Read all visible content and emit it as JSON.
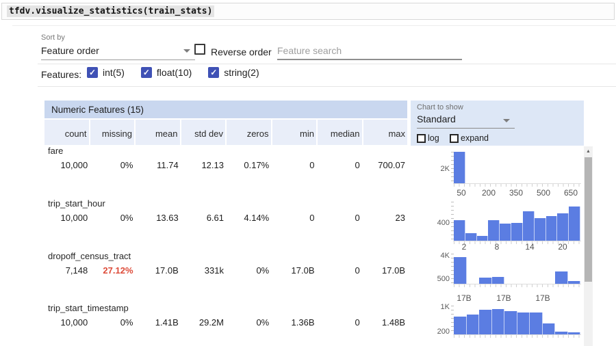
{
  "code": "tfdv.visualize_statistics(train_stats)",
  "controls": {
    "sort_by_label": "Sort by",
    "sort_by_value": "Feature order",
    "reverse_order_label": "Reverse order",
    "search_placeholder": "Feature search",
    "features_label": "Features:",
    "feature_types": [
      {
        "label": "int(5)",
        "checked": true
      },
      {
        "label": "float(10)",
        "checked": true
      },
      {
        "label": "string(2)",
        "checked": true
      }
    ]
  },
  "chart_panel": {
    "label": "Chart to show",
    "value": "Standard",
    "log_label": "log",
    "expand_label": "expand"
  },
  "table": {
    "title": "Numeric Features (15)",
    "columns": [
      "count",
      "missing",
      "mean",
      "std dev",
      "zeros",
      "min",
      "median",
      "max"
    ],
    "rows": [
      {
        "name": "fare",
        "values": [
          "10,000",
          "0%",
          "11.74",
          "12.13",
          "0.17%",
          "0",
          "0",
          "700.07"
        ],
        "missing_alert": false
      },
      {
        "name": "trip_start_hour",
        "values": [
          "10,000",
          "0%",
          "13.63",
          "6.61",
          "4.14%",
          "0",
          "0",
          "23"
        ],
        "missing_alert": false
      },
      {
        "name": "dropoff_census_tract",
        "values": [
          "7,148",
          "27.12%",
          "17.0B",
          "331k",
          "0%",
          "17.0B",
          "0",
          "17.0B"
        ],
        "missing_alert": true
      },
      {
        "name": "trip_start_timestamp",
        "values": [
          "10,000",
          "0%",
          "1.41B",
          "29.2M",
          "0%",
          "1.36B",
          "0",
          "1.48B"
        ],
        "missing_alert": false
      }
    ]
  },
  "charts": [
    {
      "feature": "fare",
      "type": "histogram",
      "y_labels": [
        "2K"
      ],
      "x_labels": [
        "50",
        "200",
        "350",
        "500",
        "650"
      ],
      "bars": [
        1,
        0,
        0,
        0,
        0,
        0,
        0,
        0,
        0,
        0,
        0
      ]
    },
    {
      "feature": "trip_start_hour",
      "type": "histogram",
      "y_labels": [
        "400"
      ],
      "x_labels": [
        "2",
        "8",
        "14",
        "20"
      ],
      "bars": [
        0.52,
        0.2,
        0.13,
        0.52,
        0.43,
        0.46,
        0.76,
        0.58,
        0.63,
        0.7,
        0.88
      ]
    },
    {
      "feature": "dropoff_census_tract",
      "type": "histogram",
      "y_labels": [
        "4K",
        "500"
      ],
      "x_labels": [
        "17B",
        "17B",
        "17B"
      ],
      "bars": [
        0.89,
        0,
        0.2,
        0.23,
        0,
        0,
        0,
        0,
        0.41,
        0.09
      ]
    },
    {
      "feature": "trip_start_timestamp",
      "type": "histogram",
      "y_labels": [
        "1K",
        "200"
      ],
      "x_labels": [],
      "bars": [
        0.62,
        0.7,
        0.85,
        0.88,
        0.82,
        0.75,
        0.75,
        0.38,
        0.1,
        0.08
      ]
    }
  ],
  "colors": {
    "bar": "#5b7de2",
    "checkbox": "#3f51b5",
    "table_title_bg": "#c9d7ef",
    "header_bg": "#e9eef9",
    "panel_bg": "#dde7f6",
    "alert": "#dd4b39"
  }
}
